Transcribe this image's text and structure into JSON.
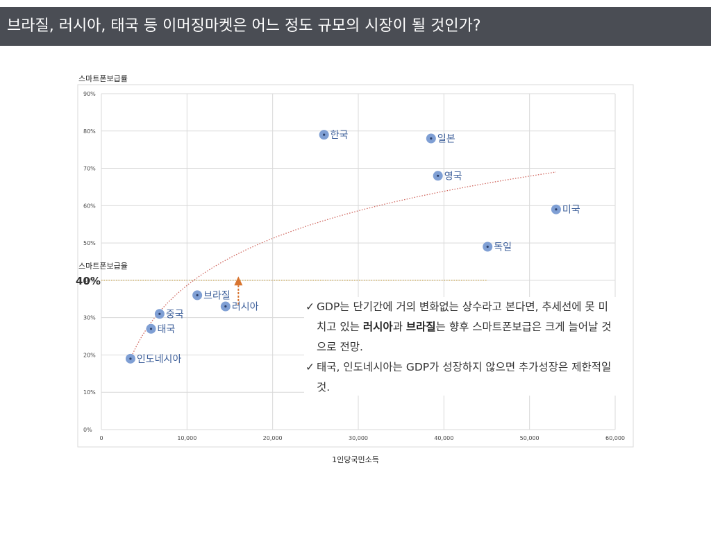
{
  "title": "브라질, 러시아, 태국 등 이머징마켓은 어느 정도 규모의 시장이 될 것인가?",
  "chart_data": {
    "type": "scatter",
    "ylabel": "스마트폰보급률",
    "xlabel": "1인당국민소득",
    "xlim": [
      0,
      60000
    ],
    "ylim": [
      0,
      90
    ],
    "x_ticks": [
      "0",
      "10,000",
      "20,000",
      "30,000",
      "40,000",
      "50,000",
      "60,000"
    ],
    "y_ticks": [
      "0%",
      "10%",
      "20%",
      "30%",
      "40%",
      "50%",
      "60%",
      "70%",
      "80%",
      "90%"
    ],
    "grid": true,
    "points": [
      {
        "label": "인도네시아",
        "x": 3400,
        "y": 19
      },
      {
        "label": "태국",
        "x": 5800,
        "y": 27
      },
      {
        "label": "중국",
        "x": 6800,
        "y": 31
      },
      {
        "label": "브라질",
        "x": 11200,
        "y": 36
      },
      {
        "label": "러시아",
        "x": 14500,
        "y": 33
      },
      {
        "label": "한국",
        "x": 26000,
        "y": 79
      },
      {
        "label": "일본",
        "x": 38500,
        "y": 78
      },
      {
        "label": "영국",
        "x": 39300,
        "y": 68
      },
      {
        "label": "독일",
        "x": 45100,
        "y": 49
      },
      {
        "label": "미국",
        "x": 53100,
        "y": 59
      }
    ],
    "trendline": {
      "type": "logarithmic",
      "x_start": 3400,
      "x_end": 53100,
      "y_start": 19,
      "y_end": 69
    },
    "reference_line": {
      "label": "스마트폰보급율",
      "value_label": "40%",
      "y": 40,
      "x_end": 45000
    },
    "arrow": {
      "x": 16000,
      "y_from": 33.5,
      "y_to": 40.5
    },
    "colors": {
      "point": "#7f9fd4",
      "label": "#3d5f9a",
      "trend": "#d0675f",
      "reference": "#c9a34a",
      "arrow": "#d8742f",
      "grid": "#d9d9d9"
    }
  },
  "notes": [
    {
      "parts": [
        {
          "text": "GDP는 단기간에 거의 변화없는 상수라고 본다면, 추세선에 못 미치고 있는 ",
          "bold": false
        },
        {
          "text": "러시아",
          "bold": true
        },
        {
          "text": "과 ",
          "bold": false
        },
        {
          "text": "브라질",
          "bold": true
        },
        {
          "text": "는 향후 스마트폰보급은 크게 늘어날 것으로 전망.",
          "bold": false
        }
      ]
    },
    {
      "parts": [
        {
          "text": "태국, 인도네시아는 GDP가 성장하지 않으면 추가성장은 제한적일 것.",
          "bold": false
        }
      ]
    }
  ],
  "check_mark": "✓"
}
